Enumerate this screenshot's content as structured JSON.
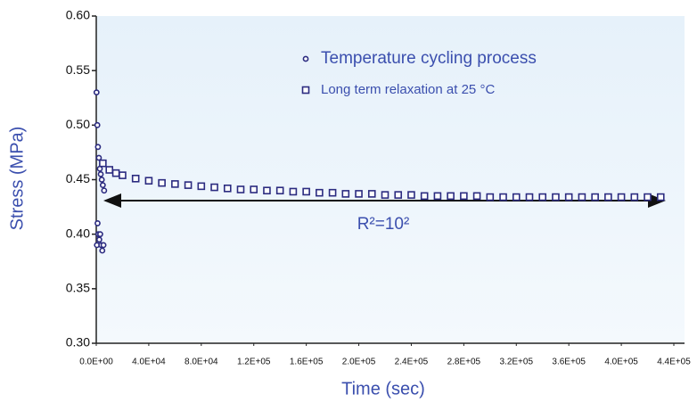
{
  "chart_data": {
    "type": "scatter",
    "xlabel": "Time (sec)",
    "ylabel": "Stress (MPa)",
    "annotation": "R²=10²",
    "xlim": [
      0,
      440000
    ],
    "ylim": [
      0.3,
      0.6
    ],
    "xticks": [
      {
        "value": 0,
        "label": "0.0E+00"
      },
      {
        "value": 40000,
        "label": "4.0E+04"
      },
      {
        "value": 80000,
        "label": "8.0E+04"
      },
      {
        "value": 120000,
        "label": "1.2E+05"
      },
      {
        "value": 160000,
        "label": "1.6E+05"
      },
      {
        "value": 200000,
        "label": "2.0E+05"
      },
      {
        "value": 240000,
        "label": "2.4E+05"
      },
      {
        "value": 280000,
        "label": "2.8E+05"
      },
      {
        "value": 320000,
        "label": "3.2E+05"
      },
      {
        "value": 360000,
        "label": "3.6E+05"
      },
      {
        "value": 400000,
        "label": "4.0E+05"
      },
      {
        "value": 440000,
        "label": "4.4E+05"
      }
    ],
    "yticks": [
      {
        "value": 0.3,
        "label": "0.30"
      },
      0.35,
      {
        "value": 0.4,
        "label": "0.40"
      },
      0.45,
      {
        "value": 0.5,
        "label": "0.50"
      },
      0.55,
      {
        "value": 0.6,
        "label": "0.60"
      }
    ],
    "series": [
      {
        "name": "Temperature cycling process",
        "color": "#2b2b80",
        "marker": "circle",
        "x": [
          200,
          500,
          800,
          1000,
          1300,
          1600,
          2000,
          2300,
          2700,
          3000,
          3400,
          3800,
          4200,
          4600,
          5000,
          5500,
          6000
        ],
        "values": [
          0.53,
          0.39,
          0.5,
          0.41,
          0.48,
          0.4,
          0.47,
          0.395,
          0.46,
          0.4,
          0.455,
          0.39,
          0.45,
          0.385,
          0.445,
          0.39,
          0.44
        ]
      },
      {
        "name": "Long term relaxation at 25 °C",
        "color": "#2b2b80",
        "marker": "square",
        "x": [
          5000,
          10000,
          15000,
          20000,
          30000,
          40000,
          50000,
          60000,
          70000,
          80000,
          90000,
          100000,
          110000,
          120000,
          130000,
          140000,
          150000,
          160000,
          170000,
          180000,
          190000,
          200000,
          210000,
          220000,
          230000,
          240000,
          250000,
          260000,
          270000,
          280000,
          290000,
          300000,
          310000,
          320000,
          330000,
          340000,
          350000,
          360000,
          370000,
          380000,
          390000,
          400000,
          410000,
          420000,
          430000
        ],
        "values": [
          0.465,
          0.459,
          0.456,
          0.454,
          0.451,
          0.449,
          0.447,
          0.446,
          0.445,
          0.444,
          0.443,
          0.442,
          0.441,
          0.441,
          0.44,
          0.44,
          0.439,
          0.439,
          0.438,
          0.438,
          0.437,
          0.437,
          0.437,
          0.436,
          0.436,
          0.436,
          0.435,
          0.435,
          0.435,
          0.435,
          0.435,
          0.434,
          0.434,
          0.434,
          0.434,
          0.434,
          0.434,
          0.434,
          0.434,
          0.434,
          0.434,
          0.434,
          0.434,
          0.434,
          0.434
        ]
      }
    ]
  }
}
